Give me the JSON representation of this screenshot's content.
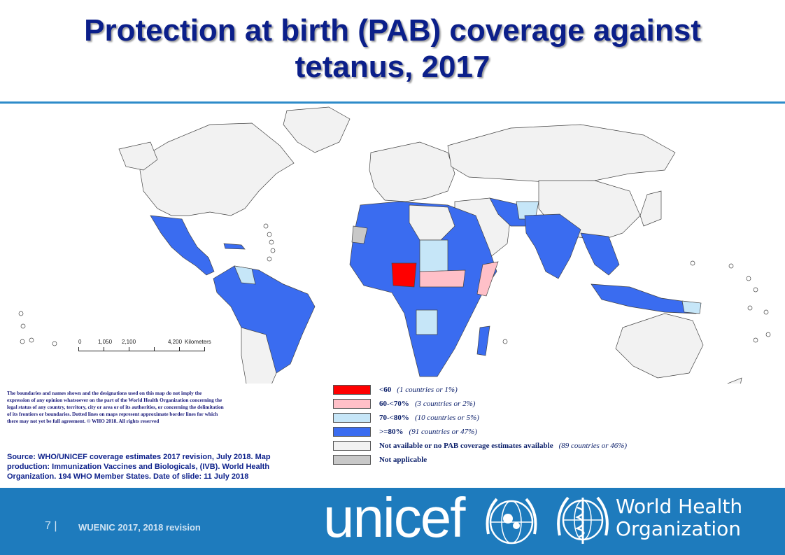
{
  "title": {
    "line1": "Protection at birth (PAB) coverage against",
    "line2": "tetanus, 2017"
  },
  "scale_bar": {
    "ticks": [
      "0",
      "1,050",
      "2,100",
      "4,200"
    ],
    "unit": "Kilometers"
  },
  "disclaimer": "The boundaries and names shown and the designations used on this map do not imply the expression of any opinion whatsoever on the part of the World Health Organization concerning the legal status of any country, territory, city or area or of its authorities, or concerning the delimitation of its frontiers or boundaries. Dotted lines on maps represent approximate border lines for which there may not yet be full agreement. © WHO 2018. All rights reserved",
  "legend": [
    {
      "label": "<60",
      "detail": "(1 countries or 1%)",
      "color": "#ff0000"
    },
    {
      "label": "60-<70%",
      "detail": "(3 countries or 2%)",
      "color": "#ffc0c8"
    },
    {
      "label": "70-<80%",
      "detail": "(10 countries or 5%)",
      "color": "#c6e6f8"
    },
    {
      "label": ">=80%",
      "detail": "(91 countries or 47%)",
      "color": "#3a6cf0"
    },
    {
      "label": "Not available or no PAB coverage estimates available",
      "detail": "(89 countries or 46%)",
      "color": "#f2f2f2"
    },
    {
      "label": "Not applicable",
      "detail": "",
      "color": "#c8c8c8"
    }
  ],
  "source": {
    "text": "Source: WHO/UNICEF coverage estimates 2017 revision, July 2018. Map production: Immunization Vaccines and Biologicals, (IVB). World Health Organization. 194 WHO Member States. Date of slide: 11 July 2018"
  },
  "footer": {
    "slide_number": "7 |",
    "revision_text": "WUENIC 2017, 2018 revision",
    "unicef_logo": "unicef",
    "who_logo_line1": "World Health",
    "who_logo_line2": "Organization"
  },
  "colors": {
    "title": "#0b1f8a",
    "footer_bg": "#1e7bbd",
    "high": "#3a6cf0",
    "mid": "#c6e6f8",
    "low": "#ffc0c8",
    "lowest": "#ff0000",
    "na": "#f2f2f2"
  }
}
